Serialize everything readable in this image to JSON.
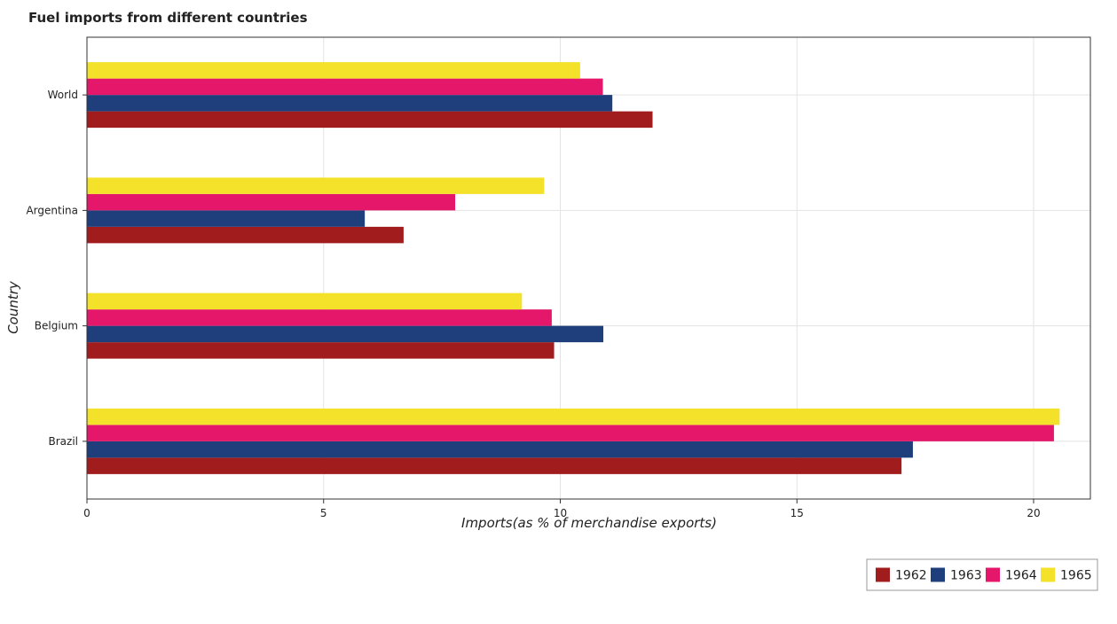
{
  "chart_data": {
    "type": "bar",
    "orientation": "horizontal",
    "title": "Fuel imports from different countries",
    "xlabel": "Imports(as % of merchandise exports)",
    "ylabel": "Country",
    "categories": [
      "World",
      "Argentina",
      "Belgium",
      "Brazil"
    ],
    "series": [
      {
        "name": "1962",
        "color": "#a11d1d",
        "values": [
          11.95,
          6.69,
          9.87,
          17.21
        ]
      },
      {
        "name": "1963",
        "color": "#1f3e7c",
        "values": [
          11.1,
          5.87,
          10.91,
          17.45
        ]
      },
      {
        "name": "1964",
        "color": "#e4176a",
        "values": [
          10.9,
          7.78,
          9.82,
          20.43
        ]
      },
      {
        "name": "1965",
        "color": "#f3e12a",
        "values": [
          10.42,
          9.66,
          9.19,
          20.55
        ]
      }
    ],
    "xlim": [
      0,
      21.2
    ],
    "xticks": [
      0,
      5,
      10,
      15,
      20
    ],
    "grid": true,
    "legend_position": "bottom-right"
  }
}
